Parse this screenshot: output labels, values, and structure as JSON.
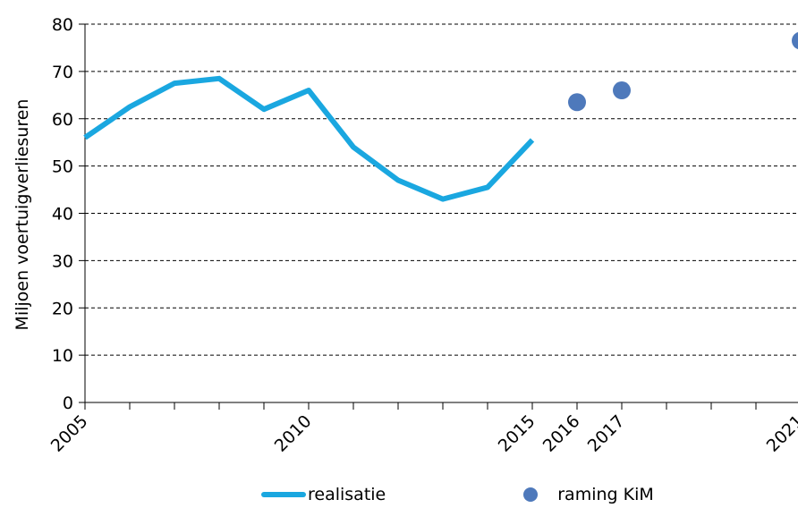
{
  "chart_data": {
    "type": "line",
    "title": "",
    "xlabel": "",
    "ylabel": "Miljoen voertuigverliesuren",
    "ylim": [
      0,
      80
    ],
    "yticks": [
      0,
      10,
      20,
      30,
      40,
      50,
      60,
      70,
      80
    ],
    "xlim": [
      2005,
      2021
    ],
    "xtick_labels": [
      "2005",
      "2010",
      "2015",
      "2016",
      "2017",
      "2021"
    ],
    "grid": "horizontal dashed",
    "legend_position": "bottom",
    "series": [
      {
        "name": "realisatie",
        "kind": "line",
        "color": "#1aa7e0",
        "x": [
          2005,
          2006,
          2007,
          2008,
          2009,
          2010,
          2011,
          2012,
          2013,
          2014,
          2015
        ],
        "values": [
          56,
          62.5,
          67.5,
          68.5,
          62,
          66,
          54,
          47,
          43,
          45.5,
          55.5
        ]
      },
      {
        "name": "raming KiM",
        "kind": "scatter",
        "color": "#4e79bb",
        "x": [
          2016,
          2017,
          2021
        ],
        "values": [
          63.5,
          66,
          76.5
        ]
      }
    ]
  }
}
